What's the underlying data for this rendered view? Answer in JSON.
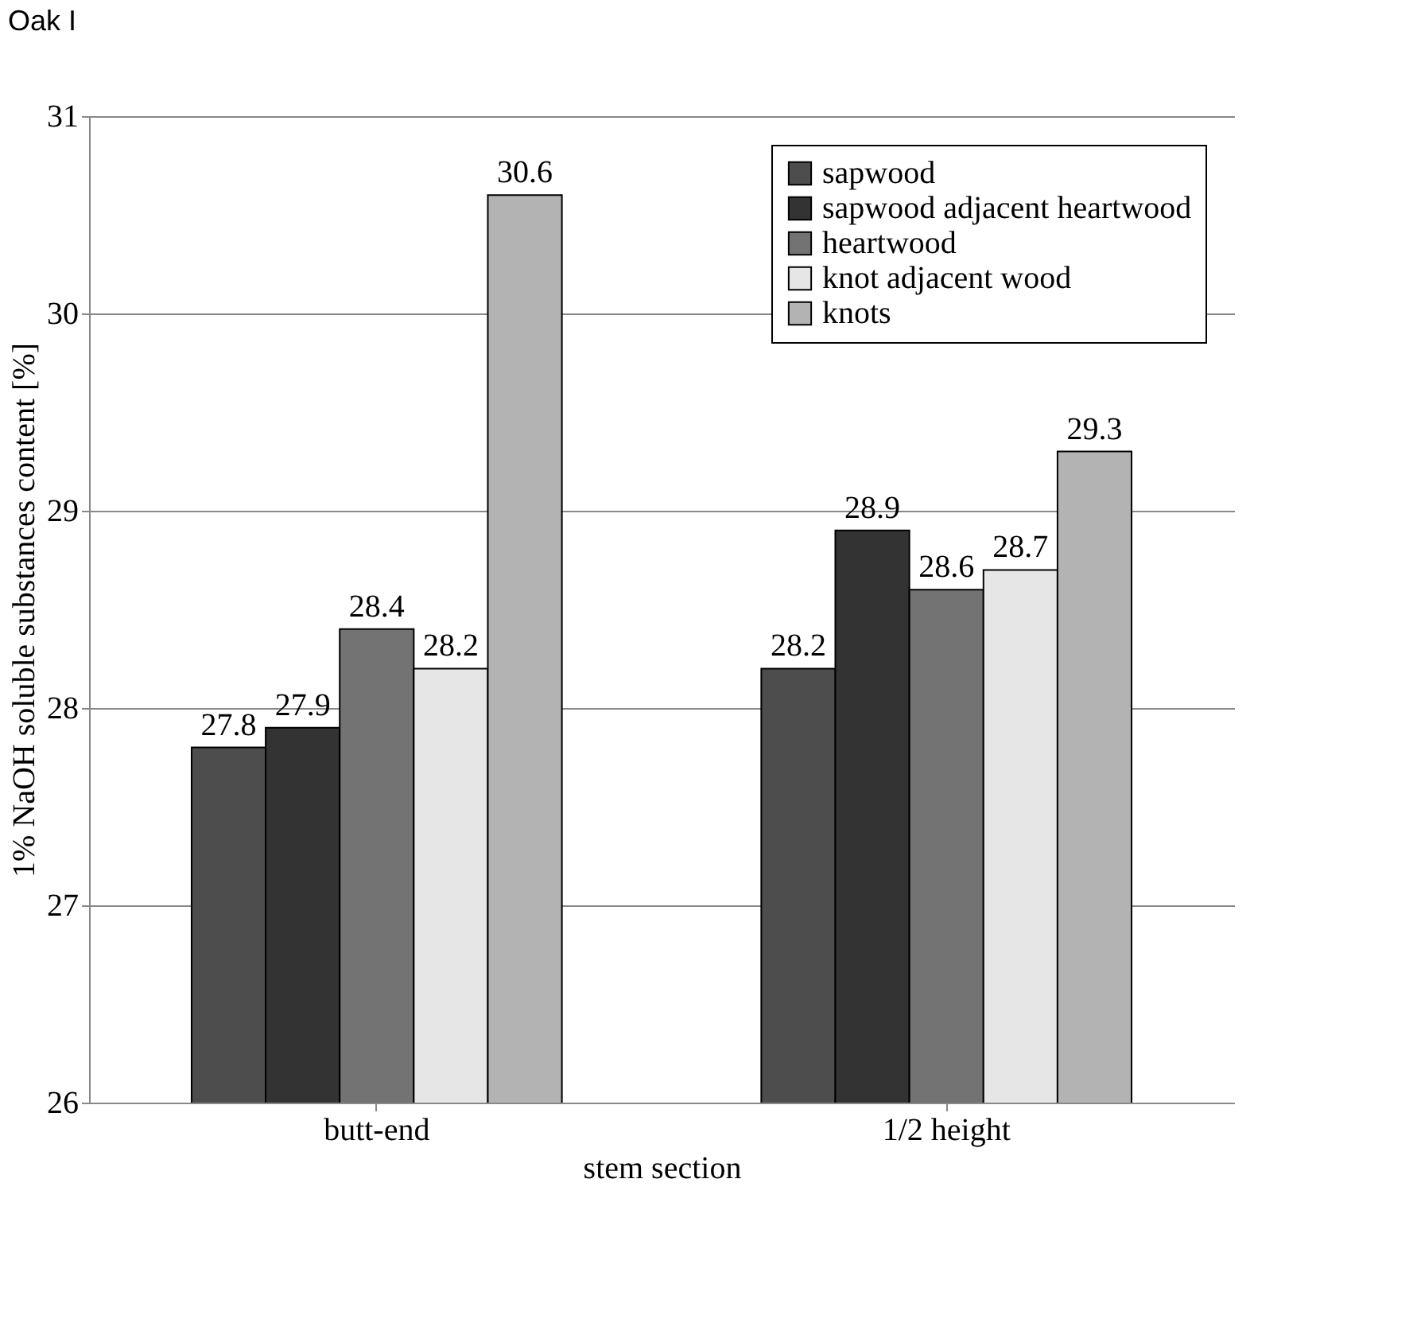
{
  "chart_data": {
    "type": "bar",
    "title": "Oak I",
    "xlabel": "stem section",
    "ylabel": "1% NaOH soluble substances content [%]",
    "categories": [
      "butt-end",
      "1/2 height"
    ],
    "series": [
      {
        "name": "sapwood",
        "color": "#4d4d4d",
        "values": [
          27.8,
          28.2
        ]
      },
      {
        "name": "sapwood adjacent heartwood",
        "color": "#333333",
        "values": [
          27.9,
          28.9
        ]
      },
      {
        "name": "heartwood",
        "color": "#737373",
        "values": [
          28.4,
          28.6
        ]
      },
      {
        "name": "knot adjacent wood",
        "color": "#e6e6e6",
        "values": [
          28.2,
          28.7
        ]
      },
      {
        "name": "knots",
        "color": "#b3b3b3",
        "values": [
          30.6,
          29.3
        ]
      }
    ],
    "ylim": [
      26,
      31
    ],
    "yticks": [
      26,
      27,
      28,
      29,
      30,
      31
    ],
    "grid": "y",
    "legend": "top right",
    "data_labels": true
  }
}
